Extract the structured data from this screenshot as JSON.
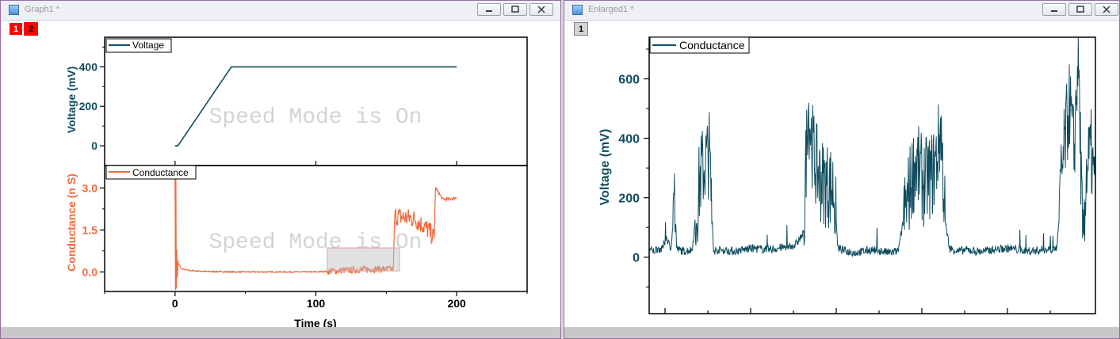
{
  "windows": [
    {
      "title": "Graph1 *",
      "layers": [
        "1",
        "2"
      ],
      "watermark": "Speed Mode is On",
      "xaxis": {
        "label": "Time (s)",
        "range": [
          -50,
          250
        ],
        "ticks": [
          "0",
          "100",
          "200"
        ]
      },
      "top_panel": {
        "ylabel": "Voltage (mV)",
        "yticks": [
          "0",
          "200",
          "400"
        ],
        "legend": "Voltage"
      },
      "bottom_panel": {
        "ylabel": "Conductance (n S)",
        "yticks": [
          "0.0",
          "1.5",
          "3.0"
        ],
        "legend": "Conductance"
      }
    },
    {
      "title": "Enlarged1 *",
      "layers": [
        "1"
      ],
      "ylabel": "Voltage (mV)",
      "yticks": [
        "0",
        "200",
        "400",
        "600"
      ],
      "legend": "Conductance"
    }
  ],
  "colors": {
    "voltage": "#0f4c5f",
    "conductance": "#f06a3c",
    "layer_active": "#ff0000",
    "watermark": "#d4d4d4"
  },
  "chart_data": [
    {
      "type": "line",
      "series": [
        {
          "name": "Voltage",
          "x": [
            0,
            2,
            40,
            200
          ],
          "y": [
            0,
            0,
            400,
            400
          ]
        }
      ],
      "xlabel": "Time (s)",
      "ylabel": "Voltage (mV)",
      "xlim": [
        -50,
        250
      ],
      "ylim": [
        -100,
        550
      ],
      "legend": "top-left"
    },
    {
      "type": "line",
      "series": [
        {
          "name": "Conductance",
          "x": [
            0,
            0.5,
            2,
            5,
            10,
            20,
            40,
            60,
            80,
            100,
            120,
            140,
            155,
            156,
            170,
            180,
            184,
            185,
            190,
            195,
            200
          ],
          "y": [
            3.8,
            -0.3,
            0.3,
            0.1,
            0.05,
            0.02,
            0.0,
            0.0,
            0.0,
            0.0,
            0.05,
            0.1,
            0.1,
            2.0,
            1.9,
            1.5,
            1.2,
            3.0,
            2.6,
            2.6,
            2.65
          ]
        }
      ],
      "xlabel": "Time (s)",
      "ylabel": "Conductance (n S)",
      "xlim": [
        -50,
        250
      ],
      "ylim": [
        -0.7,
        3.8
      ],
      "legend": "top-left",
      "annotations": [
        "selection box around 108–158 s"
      ]
    },
    {
      "type": "line",
      "series": [
        {
          "name": "Conductance",
          "x": [
            0,
            5,
            10,
            15,
            20,
            25,
            30,
            32,
            34,
            40,
            50,
            60,
            70,
            75,
            80,
            100,
            120,
            140,
            160,
            170,
            180,
            185,
            190,
            195,
            200,
            210,
            215,
            220,
            230,
            240,
            250,
            260,
            270,
            280,
            290,
            300,
            310,
            320,
            330,
            335,
            340,
            345,
            350,
            360,
            370,
            380,
            390,
            400,
            420,
            440,
            460,
            475,
            480,
            485,
            490,
            495,
            500,
            505,
            510,
            515,
            520
          ],
          "y": [
            25,
            20,
            30,
            25,
            70,
            25,
            190,
            30,
            25,
            20,
            25,
            280,
            350,
            20,
            25,
            20,
            30,
            25,
            35,
            40,
            80,
            520,
            380,
            300,
            260,
            240,
            230,
            30,
            20,
            15,
            20,
            25,
            20,
            15,
            20,
            180,
            320,
            250,
            280,
            330,
            440,
            120,
            30,
            20,
            25,
            20,
            20,
            25,
            30,
            20,
            25,
            30,
            250,
            400,
            520,
            350,
            700,
            60,
            300,
            350,
            200
          ]
        }
      ],
      "ylabel": "Voltage (mV)",
      "xlim": [
        0,
        520
      ],
      "ylim": [
        -190,
        740
      ],
      "legend": "top-left"
    }
  ]
}
